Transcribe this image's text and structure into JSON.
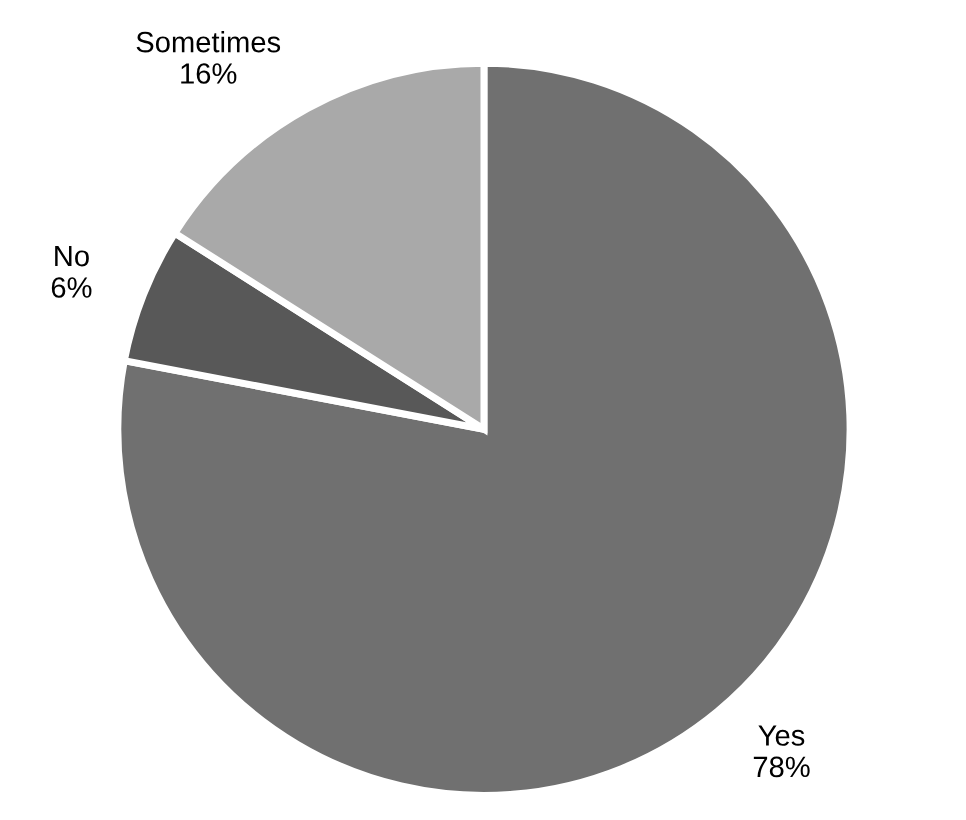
{
  "chart_data": {
    "type": "pie",
    "categories": [
      "Yes",
      "No",
      "Sometimes"
    ],
    "values": [
      78,
      6,
      16
    ],
    "value_labels": [
      "78%",
      "6%",
      "16%"
    ],
    "colors": [
      "#707070",
      "#585858",
      "#a9a9a9"
    ],
    "legend": false
  }
}
